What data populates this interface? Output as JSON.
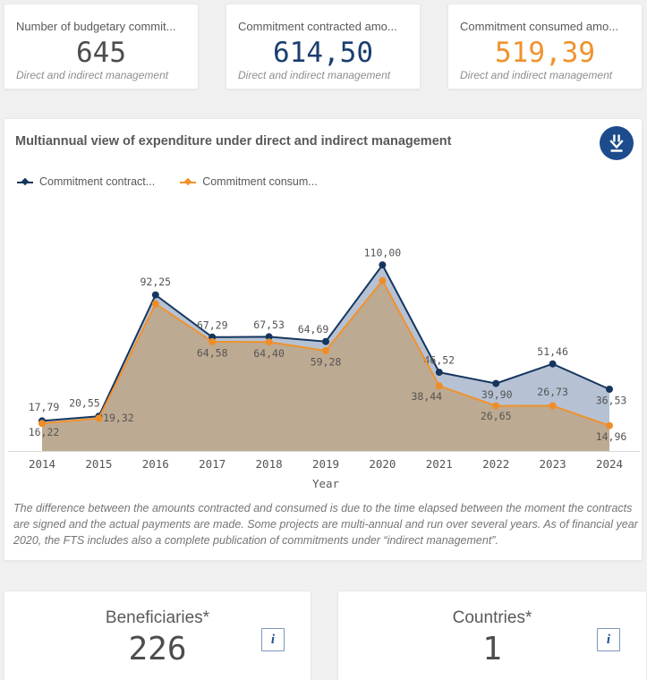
{
  "kpi_cards": [
    {
      "title": "Number of budgetary commit...",
      "value": "645",
      "value_color": "#4d4d4d",
      "subtitle": "Direct and indirect management"
    },
    {
      "title": "Commitment contracted amo...",
      "value": "614,50",
      "value_color": "#1b3e6f",
      "subtitle": "Direct and indirect management"
    },
    {
      "title": "Commitment consumed amo...",
      "value": "519,39",
      "value_color": "#f0922d",
      "subtitle": "Direct and indirect management"
    }
  ],
  "chart_panel": {
    "title": "Multiannual view of expenditure under direct and indirect management",
    "download_button": "download-arrow",
    "footnote": "The difference between the amounts contracted and consumed is due to the time elapsed between the moment the contracts are signed and the actual payments are made. Some projects are multi-annual and run over several years. As of financial year 2020, the FTS includes also a complete publication of commitments under “indirect management”."
  },
  "chart_data": {
    "type": "area",
    "title": "Multiannual view of expenditure under direct and indirect management",
    "x": [
      "2014",
      "2015",
      "2016",
      "2017",
      "2018",
      "2019",
      "2020",
      "2021",
      "2022",
      "2023",
      "2024"
    ],
    "xlabel": "Year",
    "ylim": [
      0,
      115
    ],
    "grid": false,
    "legend_position": "top-left",
    "decimal_separator": ",",
    "series": [
      {
        "name": "Commitment contract...",
        "line_color": "#16355e",
        "marker_color": "#16355e",
        "fill_color": "#b6c2d4",
        "values": [
          17.79,
          20.55,
          92.25,
          67.29,
          67.53,
          64.69,
          110.0,
          46.52,
          39.9,
          51.46,
          36.53
        ],
        "labels": [
          "17,79",
          "20,55",
          "92,25",
          "67,29",
          "67,53",
          "64,69",
          "110,00",
          "46,52",
          "39,90",
          "51,46",
          "36,53"
        ],
        "label_dx": [
          2,
          -16,
          0,
          0,
          0,
          -14,
          0,
          0,
          1,
          0,
          2
        ],
        "label_dy": [
          -15,
          -14,
          -14,
          -13,
          -13,
          -13,
          -13,
          -13,
          13,
          -13,
          13
        ]
      },
      {
        "name": "Commitment consum...",
        "line_color": "#f0922d",
        "marker_color": "#ef8d28",
        "fill_color": "#bdaa92",
        "values": [
          16.22,
          19.32,
          87.0,
          64.58,
          64.4,
          59.28,
          100.7,
          38.44,
          26.65,
          26.73,
          14.96
        ],
        "labels": [
          "16,22",
          "19,32",
          null,
          "64,58",
          "64,40",
          "59,28",
          null,
          "38,44",
          "26,65",
          "26,73",
          "14,96"
        ],
        "label_dx": [
          2,
          22,
          0,
          0,
          0,
          0,
          0,
          -14,
          0,
          0,
          2
        ],
        "label_dy": [
          10,
          0,
          0,
          13,
          13,
          13,
          0,
          12,
          12,
          -15,
          13
        ]
      }
    ],
    "notes": "values for 2016 and 2020 of the consumed series are unlabeled on screen and estimated from pixel positions",
    "axis_color": "#d9d9d9",
    "label_color": "#545454"
  },
  "stat_cards": [
    {
      "title": "Beneficiaries*",
      "value": "226",
      "info_icon": "i"
    },
    {
      "title": "Countries*",
      "value": "1",
      "info_icon": "i"
    }
  ]
}
